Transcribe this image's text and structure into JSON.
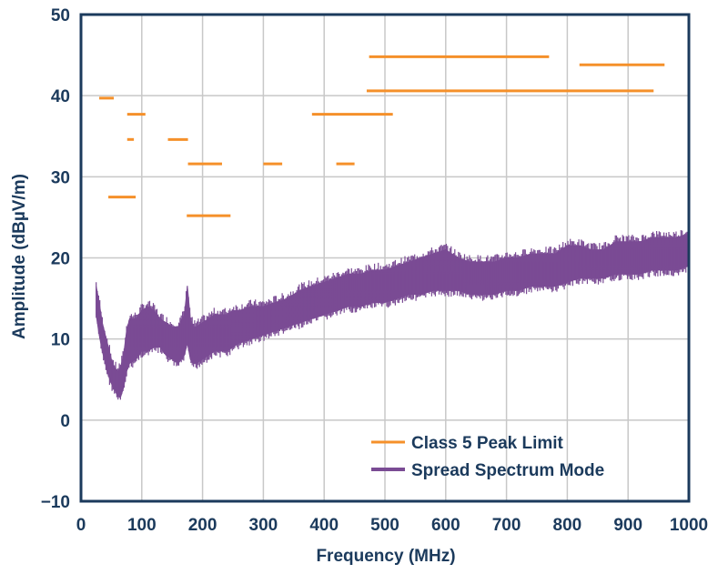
{
  "chart_data": {
    "type": "line",
    "title": "",
    "xlabel": "Frequency (MHz)",
    "ylabel": "Amplitude (dBµV/m)",
    "xlim": [
      0,
      1000
    ],
    "ylim": [
      -10,
      50
    ],
    "xticks": [
      "0",
      "100",
      "200",
      "300",
      "400",
      "500",
      "600",
      "700",
      "800",
      "900",
      "1000"
    ],
    "yticks": [
      "50",
      "40",
      "30",
      "20",
      "10",
      "0",
      "−10"
    ],
    "grid": true,
    "legend_position": "bottom-right",
    "colors": {
      "limit": "#f5902a",
      "spectrum": "#7a4b94",
      "grid": "#c8c8c8",
      "text": "#1b3a5c"
    },
    "series": [
      {
        "name": "Class 5 Peak Limit",
        "style": "segments",
        "segments": [
          {
            "x": [
              30,
              54
            ],
            "y": 39.7
          },
          {
            "x": 45,
            "x2": 90,
            "y": 27.5
          },
          {
            "x": [
              76,
              87
            ],
            "y": 34.6
          },
          {
            "x": [
              76,
              106
            ],
            "y": 37.7
          },
          {
            "x": [
              143,
              176
            ],
            "y": 34.6
          },
          {
            "x": [
              174,
              246
            ],
            "y": 25.2
          },
          {
            "x": [
              176,
              232
            ],
            "y": 31.6
          },
          {
            "x": [
              300,
              331
            ],
            "y": 31.6
          },
          {
            "x": [
              380,
              513
            ],
            "y": 37.7
          },
          {
            "x": [
              420,
              450
            ],
            "y": 31.6
          },
          {
            "x": [
              470,
              942
            ],
            "y": 40.6
          },
          {
            "x": [
              474,
              770
            ],
            "y": 44.8
          },
          {
            "x": [
              820,
              960
            ],
            "y": 43.8
          }
        ]
      },
      {
        "name": "Spread Spectrum Mode",
        "style": "band",
        "x": [
          25,
          30,
          35,
          40,
          45,
          50,
          55,
          60,
          65,
          70,
          75,
          80,
          90,
          100,
          110,
          120,
          130,
          140,
          150,
          160,
          170,
          175,
          180,
          185,
          190,
          200,
          210,
          220,
          230,
          240,
          250,
          260,
          280,
          300,
          320,
          340,
          360,
          380,
          400,
          420,
          440,
          460,
          480,
          500,
          520,
          540,
          560,
          580,
          600,
          620,
          640,
          660,
          680,
          700,
          720,
          740,
          760,
          780,
          800,
          820,
          840,
          860,
          880,
          900,
          920,
          940,
          960,
          980,
          1000
        ],
        "low": [
          13.0,
          10.5,
          8.5,
          7.0,
          5.5,
          4.5,
          3.8,
          3.0,
          2.8,
          4.0,
          6.0,
          7.0,
          7.5,
          8.5,
          8.5,
          9.0,
          9.0,
          8.0,
          7.5,
          7.0,
          8.0,
          9.5,
          7.5,
          7.0,
          7.0,
          7.5,
          8.0,
          8.5,
          8.5,
          8.5,
          9.0,
          9.5,
          10.0,
          10.5,
          11.0,
          11.5,
          12.0,
          12.5,
          13.0,
          13.5,
          14.0,
          14.0,
          14.5,
          14.5,
          15.0,
          15.5,
          15.5,
          16.0,
          16.0,
          16.0,
          15.5,
          15.5,
          15.5,
          16.0,
          16.0,
          16.5,
          16.5,
          16.5,
          17.0,
          17.5,
          17.5,
          17.5,
          18.0,
          18.0,
          18.0,
          18.5,
          18.5,
          18.5,
          19.0
        ],
        "high": [
          16.5,
          14.5,
          12.0,
          10.5,
          9.0,
          7.5,
          6.5,
          6.0,
          6.5,
          8.0,
          11.0,
          12.5,
          12.5,
          13.5,
          14.0,
          13.5,
          12.5,
          12.0,
          11.5,
          11.5,
          13.0,
          16.5,
          12.5,
          11.5,
          11.5,
          12.0,
          12.5,
          13.0,
          13.0,
          13.0,
          13.5,
          13.5,
          14.0,
          14.0,
          14.5,
          15.0,
          16.0,
          16.5,
          17.0,
          17.5,
          18.0,
          18.0,
          18.5,
          18.5,
          19.0,
          19.5,
          20.0,
          20.5,
          21.0,
          20.0,
          19.5,
          19.5,
          19.5,
          20.0,
          20.0,
          20.5,
          20.5,
          20.5,
          21.5,
          21.5,
          21.0,
          21.0,
          22.0,
          22.0,
          22.0,
          22.5,
          22.5,
          22.5,
          23.0
        ]
      }
    ],
    "legend": [
      {
        "label": "Class 5 Peak Limit",
        "color": "#f5902a"
      },
      {
        "label": "Spread Spectrum Mode",
        "color": "#7a4b94"
      }
    ]
  }
}
